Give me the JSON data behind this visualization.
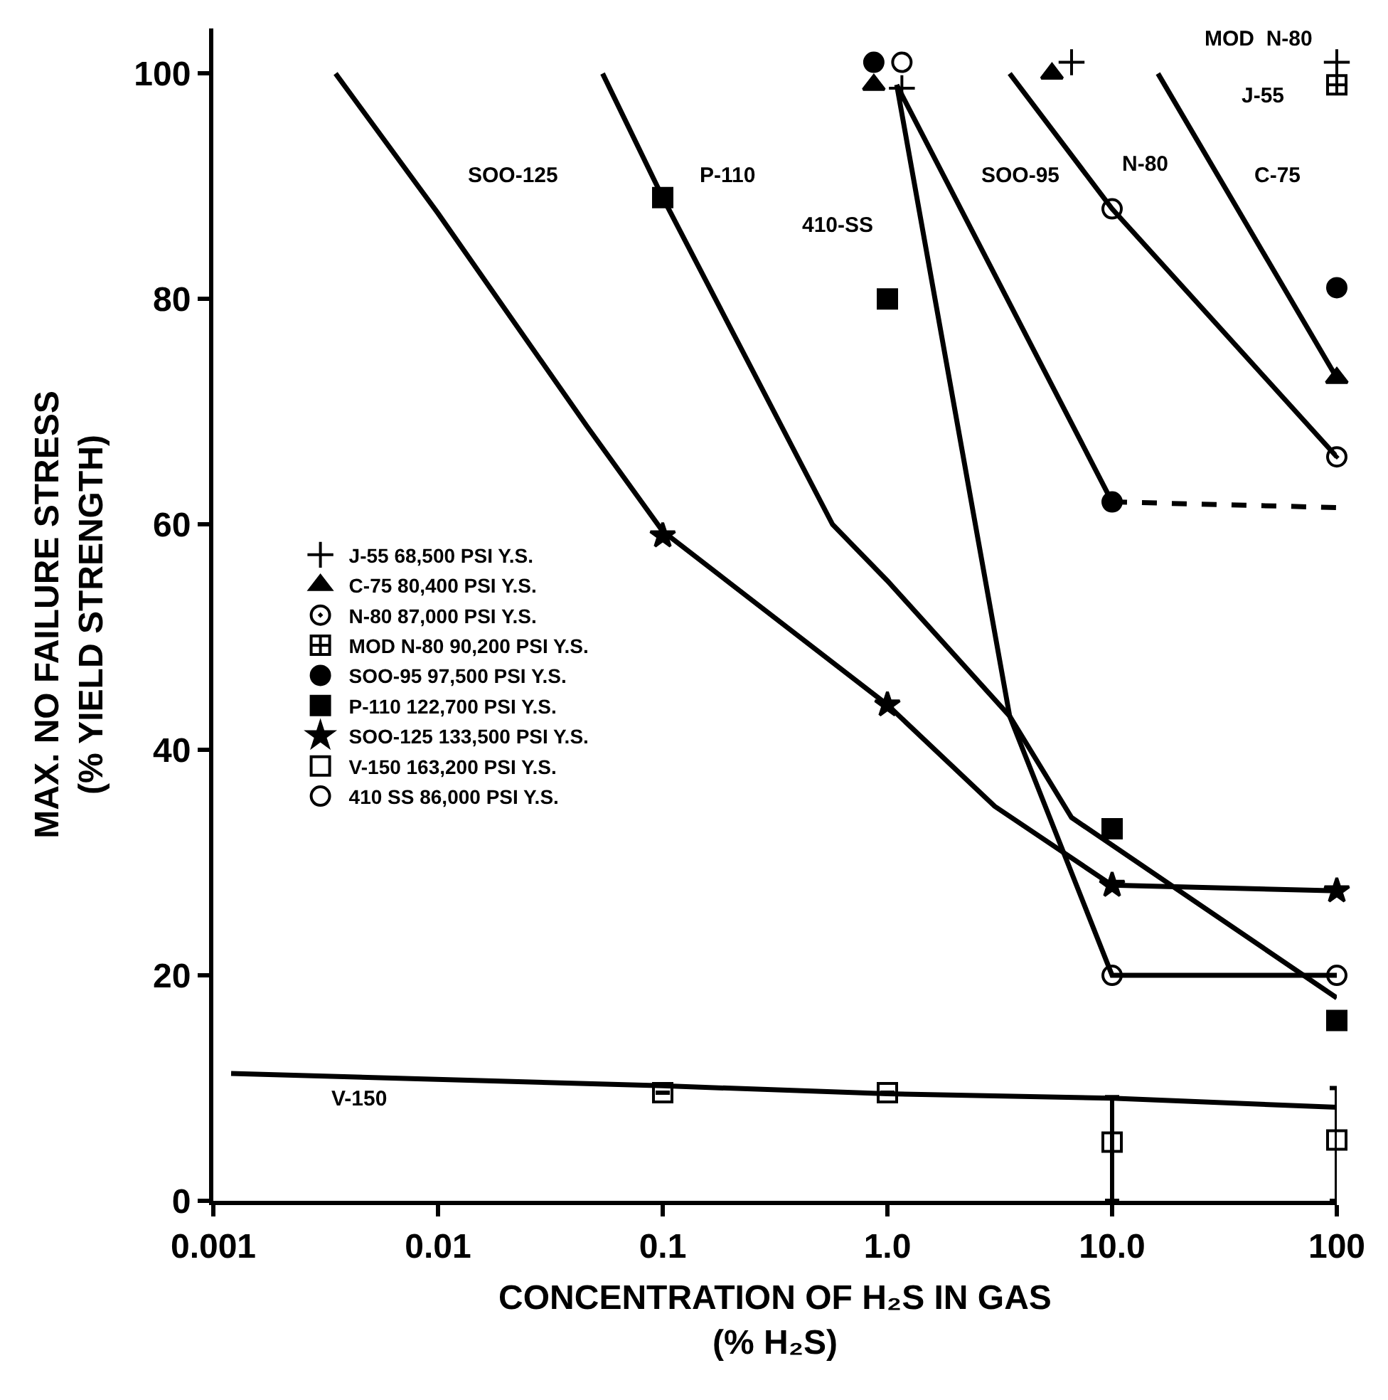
{
  "chart_data": {
    "type": "scatter",
    "xlabel": "CONCENTRATION OF H₂S IN GAS\n(% H₂S)",
    "ylabel": "MAX. NO FAILURE STRESS\n(% YIELD STRENGTH)",
    "log": "x",
    "xlim": [
      0.001,
      100
    ],
    "ylim": [
      0,
      104
    ],
    "xticks": [
      0.001,
      0.01,
      0.1,
      {
        "value": 1,
        "label": "1.0"
      },
      {
        "value": 10,
        "label": "10.0"
      },
      100
    ],
    "yticks": [
      0,
      20,
      40,
      60,
      80,
      100
    ],
    "legend": "left",
    "series": [
      {
        "type": "line",
        "color": "#000000",
        "line_style": "solid",
        "x": [
          0.0035,
          0.01,
          0.046,
          0.1,
          1,
          3,
          10,
          100
        ],
        "values": [
          100,
          87.6,
          68.7,
          59.4,
          44,
          35,
          28,
          27.5
        ]
      },
      {
        "type": "line",
        "color": "#000000",
        "line_style": "solid",
        "x": [
          0.054,
          0.1,
          0.57,
          1,
          3.5,
          6.6,
          100
        ],
        "values": [
          100,
          89,
          60,
          55,
          43,
          34,
          18
        ]
      },
      {
        "type": "line",
        "color": "#000000",
        "line_style": "solid",
        "x": [
          1.1,
          3.5,
          10,
          100
        ],
        "values": [
          99,
          43,
          20,
          20
        ]
      },
      {
        "type": "line",
        "color": "#000000",
        "line_style": "solid",
        "x": [
          1.1,
          10
        ],
        "values": [
          99,
          62
        ]
      },
      {
        "type": "line",
        "color": "#000000",
        "line_style": "dashed",
        "x": [
          10,
          100
        ],
        "values": [
          62,
          61.5
        ]
      },
      {
        "type": "line",
        "color": "#000000",
        "line_style": "solid",
        "x": [
          3.5,
          10,
          100
        ],
        "values": [
          100,
          88,
          66
        ]
      },
      {
        "type": "line",
        "color": "#000000",
        "line_style": "solid",
        "x": [
          16,
          100
        ],
        "values": [
          100,
          73
        ]
      },
      {
        "type": "line",
        "color": "#000000",
        "line_style": "solid",
        "x": [
          0.0012,
          0.1,
          1,
          10,
          100
        ],
        "values": [
          11.3,
          10.2,
          9.5,
          9.1,
          8.3
        ]
      },
      {
        "name": "J-55 68,500 PSI Y.S.",
        "color": "#000000",
        "marker": "cross",
        "x": [
          1.16,
          6.6,
          100
        ],
        "values": [
          98.7,
          101,
          101
        ]
      },
      {
        "name": "C-75 80,400 PSI Y.S.",
        "color": "#000000",
        "marker": "triangle",
        "x": [
          0.87,
          5.4,
          100
        ],
        "values": [
          99,
          100,
          73
        ]
      },
      {
        "name": "N-80 87,000 PSI Y.S.",
        "color": "#000000",
        "marker": "circle-dot",
        "x": [
          10,
          100
        ],
        "values": [
          88,
          66
        ]
      },
      {
        "name": "MOD N-80 90,200 PSI Y.S.",
        "color": "#000000",
        "x": [
          100
        ],
        "values": [
          99
        ]
      },
      {
        "name": "SOO-95 97,500 PSI Y.S.",
        "color": "#000000",
        "marker": "circle",
        "x": [
          0.87,
          10,
          100
        ],
        "values": [
          101,
          62,
          81
        ]
      },
      {
        "name": "P-110 122,700 PSI Y.S.",
        "color": "#000000",
        "marker": "square",
        "x": [
          0.1,
          1,
          10,
          100
        ],
        "values": [
          89,
          80,
          33,
          16
        ]
      },
      {
        "name": "SOO-125 133,500 PSI Y.S.",
        "color": "#000000",
        "marker": "star",
        "x": [
          0.1,
          1,
          10,
          100
        ],
        "values": [
          59,
          44,
          28,
          27.5
        ]
      },
      {
        "name": "V-150 163,200 PSI Y.S.",
        "color": "#000000",
        "marker": "square-open",
        "x": [
          0.1,
          1,
          10,
          100
        ],
        "values": [
          9.6,
          9.6,
          5.2,
          5.4
        ],
        "errors": [
          null,
          null,
          [
            0,
            9.2
          ],
          [
            0,
            10
          ]
        ]
      },
      {
        "name": "410 SS 86,000 PSI Y.S.",
        "color": "#000000",
        "marker": "circle-open",
        "x": [
          1.16,
          10,
          100
        ],
        "values": [
          101,
          20,
          20
        ]
      }
    ],
    "annotations": [
      "SOO-125",
      "P-110",
      "410-SS",
      "SOO-95",
      "N-80",
      "MOD  N-80",
      "J-55",
      "C-75",
      "V-150"
    ]
  }
}
